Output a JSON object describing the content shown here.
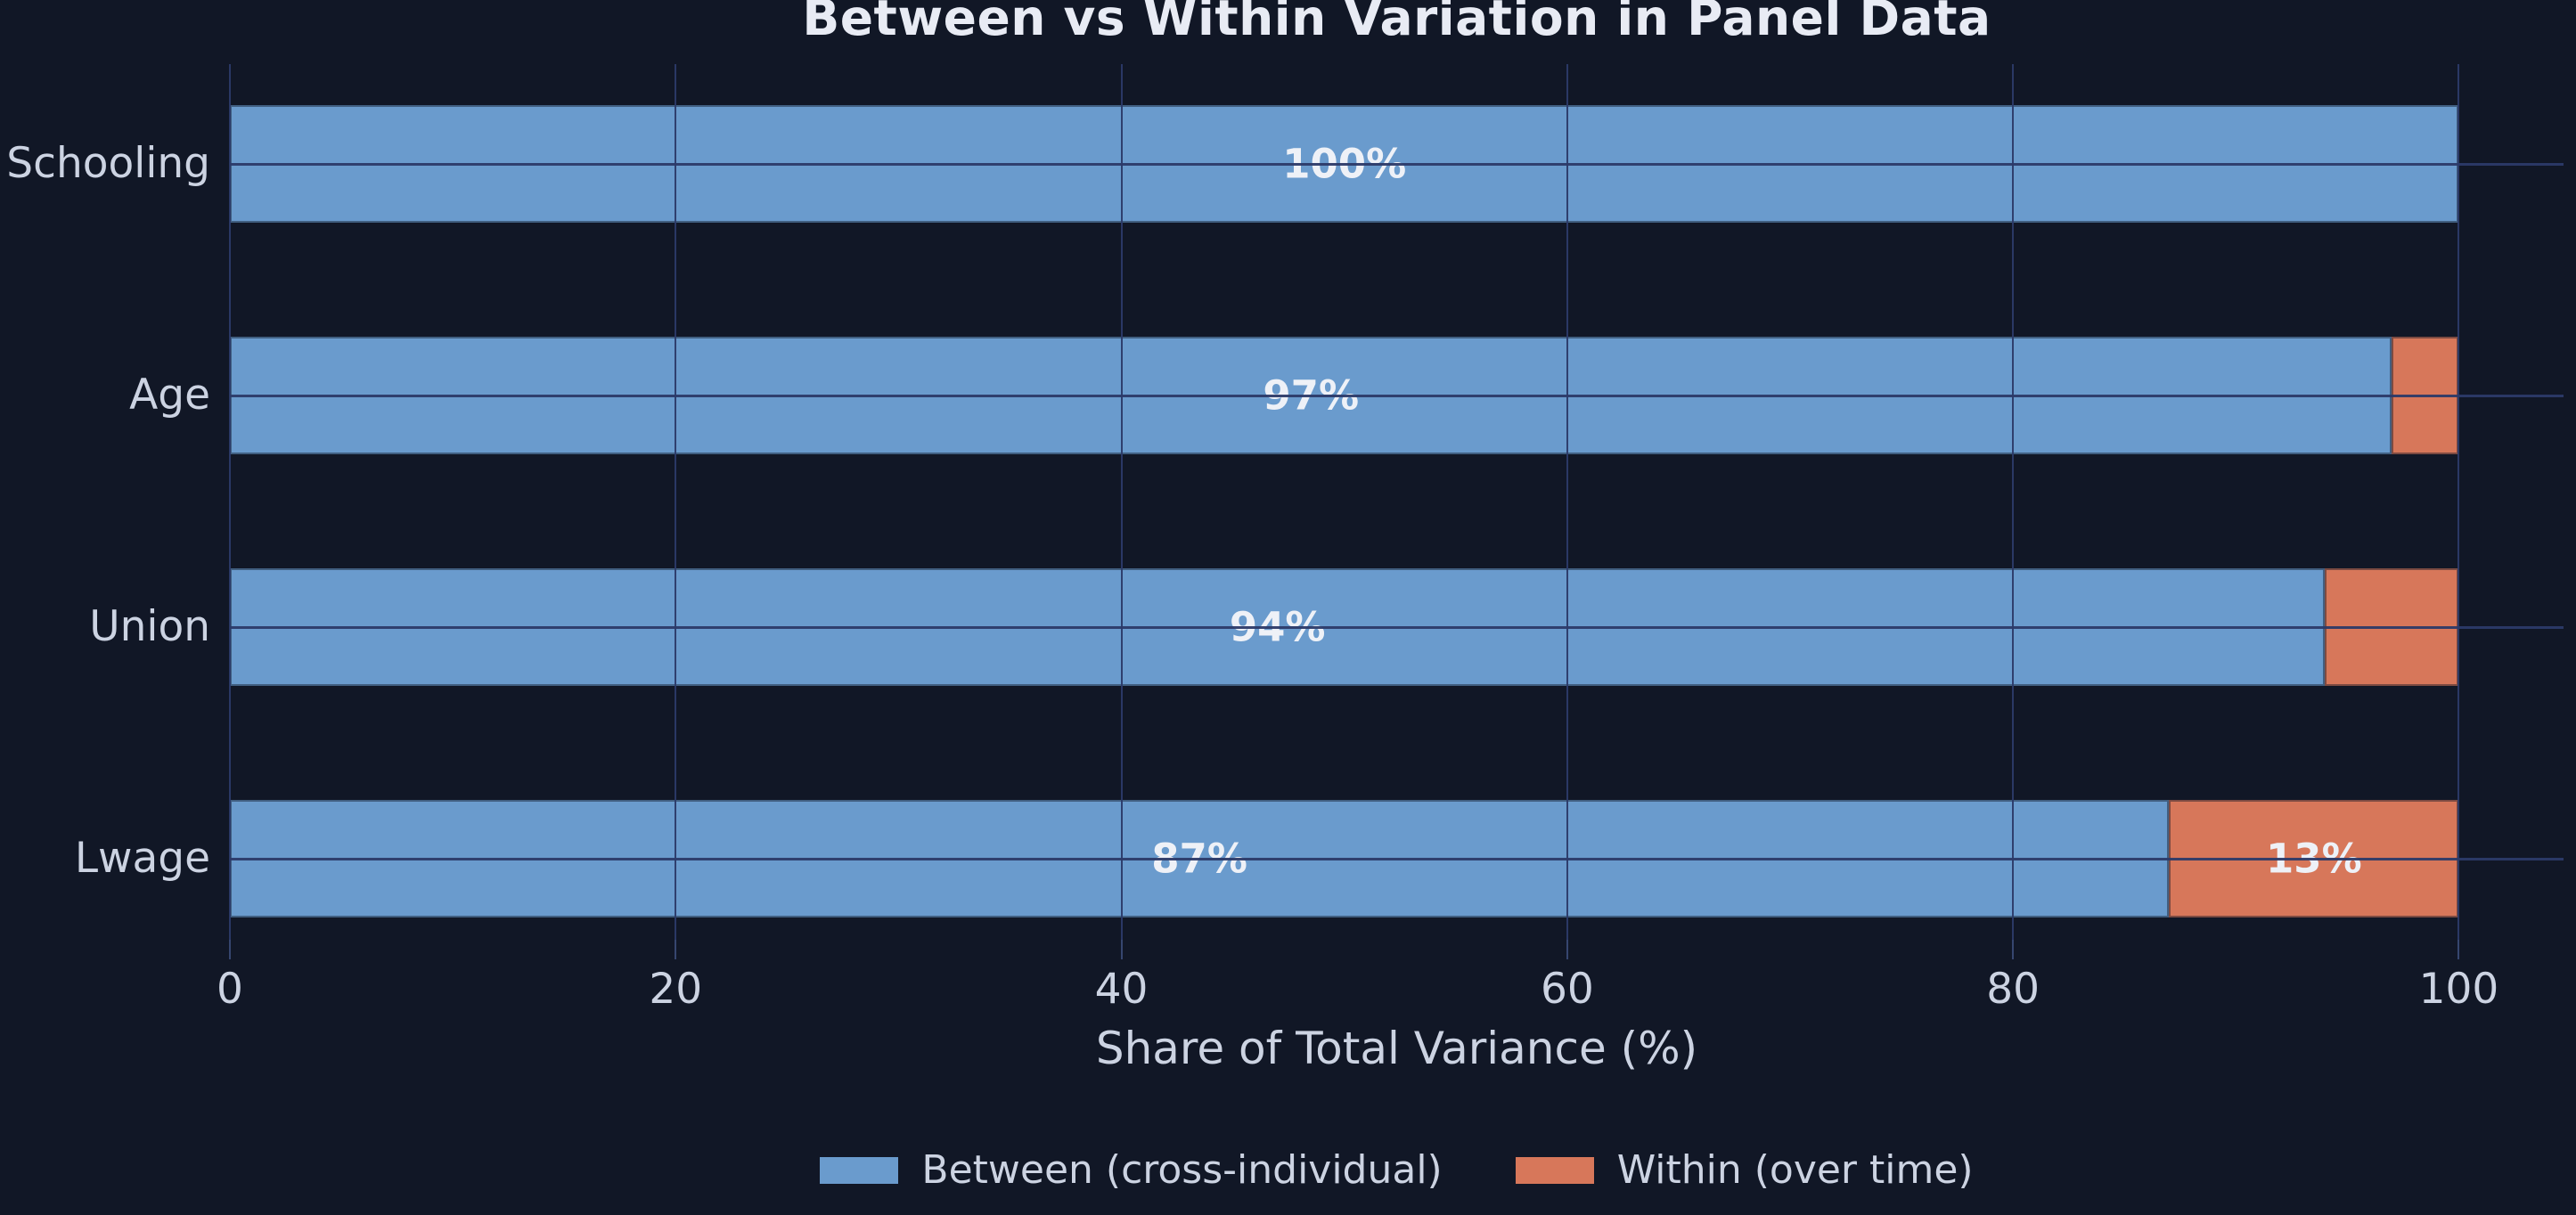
{
  "chart_data": {
    "type": "bar",
    "orientation": "horizontal",
    "stacked": true,
    "title": "Between vs Within Variation in Panel Data",
    "xlabel": "Share of Total Variance (%)",
    "categories": [
      "Schooling",
      "Age",
      "Union",
      "Lwage"
    ],
    "series": [
      {
        "name": "Between (cross-individual)",
        "color": "#6a9bcd",
        "values": [
          100,
          97,
          94,
          87
        ]
      },
      {
        "name": "Within (over time)",
        "color": "#d7775a",
        "values": [
          0,
          3,
          6,
          13
        ]
      }
    ],
    "bar_labels": [
      [
        "100%",
        ""
      ],
      [
        "97%",
        ""
      ],
      [
        "94%",
        ""
      ],
      [
        "87%",
        "13%"
      ]
    ],
    "xlim": [
      0,
      104.7
    ],
    "xticks": [
      0,
      20,
      40,
      60,
      80,
      100
    ],
    "grid": true,
    "grid_on_top_of_bars": true,
    "legend_position": "bottom center"
  },
  "legend": {
    "items": [
      {
        "label": "Between (cross-individual)",
        "color": "#6a9bcd"
      },
      {
        "label": "Within (over time)",
        "color": "#d7775a"
      }
    ]
  },
  "colors": {
    "background": "#111726",
    "between": "#6a9bcd",
    "within": "#d7775a",
    "grid": "#2c3a68",
    "tick": "#36466f",
    "title_text": "#e8ebf4",
    "axis_text": "#ccd3e2",
    "bar_label_text": "#eef1f7"
  }
}
